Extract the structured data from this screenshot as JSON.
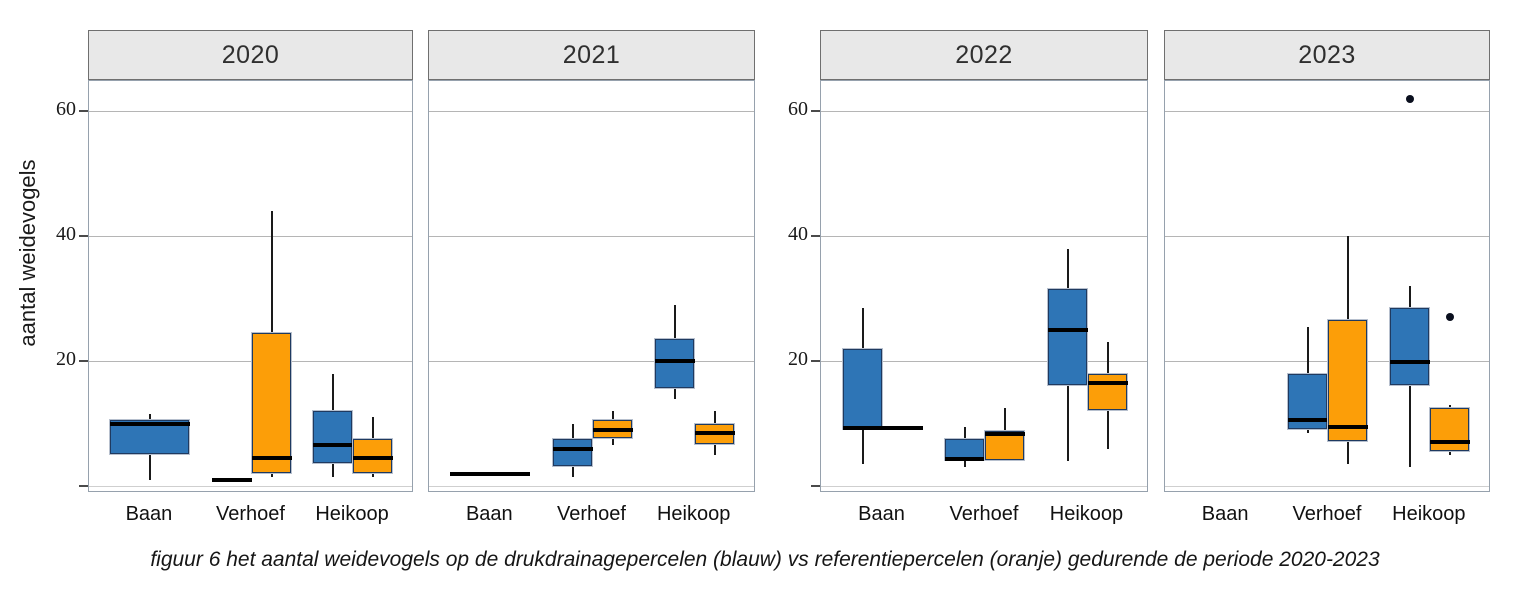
{
  "caption": "figuur 6 het aantal weidevogels op de drukdrainagepercelen (blauw) vs referentiepercelen (oranje) gedurende de periode 2020-2023",
  "colors": {
    "blue_fill": "#2E75B6",
    "orange_fill": "#FC9E08",
    "box_border": "#1F3A60",
    "box_outer_outline": "#B7C0CE",
    "median": "#000000",
    "strip_bg": "#E8E8E8",
    "panel_border": "#96A1AD",
    "grid": "#B5B5B5",
    "text": "#1A1A1A"
  },
  "chart_data": {
    "type": "boxplot",
    "title": "",
    "ylabel": "aantal weidevogels",
    "xlabel": "",
    "ylim": [
      0,
      65
    ],
    "yticks": [
      20,
      40,
      60
    ],
    "grid": "horizontal-major",
    "categories": [
      "Baan",
      "Verhoef",
      "Heikoop"
    ],
    "series": [
      {
        "key": "blue",
        "name": "drukdrainagepercelen",
        "color": "#2E75B6"
      },
      {
        "key": "orange",
        "name": "referentiepercelen",
        "color": "#FC9E08"
      }
    ],
    "panels": [
      {
        "title": "2020",
        "axis_labels": true,
        "boxes": [
          {
            "cat": "Baan",
            "series": "blue",
            "span": "full",
            "type": "box",
            "low": 1,
            "q1": 5,
            "median": 10,
            "q3": 10.5,
            "high": 11.5,
            "outliers": []
          },
          {
            "cat": "Verhoef",
            "series": "blue",
            "span": "dodge",
            "type": "flat",
            "value": 1
          },
          {
            "cat": "Verhoef",
            "series": "orange",
            "span": "dodge",
            "type": "box",
            "low": 1.5,
            "q1": 2,
            "median": 4.5,
            "q3": 24.5,
            "high": 44,
            "outliers": []
          },
          {
            "cat": "Heikoop",
            "series": "blue",
            "span": "dodge",
            "type": "box",
            "low": 1.5,
            "q1": 3.5,
            "median": 6.5,
            "q3": 12,
            "high": 18,
            "outliers": []
          },
          {
            "cat": "Heikoop",
            "series": "orange",
            "span": "dodge",
            "type": "box",
            "low": 1.5,
            "q1": 2,
            "median": 4.5,
            "q3": 7.5,
            "high": 11,
            "outliers": []
          }
        ]
      },
      {
        "title": "2021",
        "axis_labels": false,
        "boxes": [
          {
            "cat": "Baan",
            "series": "blue",
            "span": "full",
            "type": "flat",
            "value": 2
          },
          {
            "cat": "Verhoef",
            "series": "blue",
            "span": "dodge",
            "type": "box",
            "low": 1.5,
            "q1": 3,
            "median": 6,
            "q3": 7.5,
            "high": 10,
            "outliers": []
          },
          {
            "cat": "Verhoef",
            "series": "orange",
            "span": "dodge",
            "type": "box",
            "low": 6.5,
            "q1": 7.5,
            "median": 9,
            "q3": 10.5,
            "high": 12,
            "outliers": []
          },
          {
            "cat": "Heikoop",
            "series": "blue",
            "span": "dodge",
            "type": "box",
            "low": 14,
            "q1": 15.5,
            "median": 20,
            "q3": 23.5,
            "high": 29,
            "outliers": []
          },
          {
            "cat": "Heikoop",
            "series": "orange",
            "span": "dodge",
            "type": "box",
            "low": 5,
            "q1": 6.5,
            "median": 8.5,
            "q3": 10,
            "high": 12,
            "outliers": []
          }
        ]
      },
      {
        "title": "2022",
        "axis_labels": true,
        "boxes": [
          {
            "cat": "Baan",
            "series": "blue",
            "span": "dodge",
            "type": "box",
            "low": 3.5,
            "q1": 9,
            "median": 9.3,
            "q3": 22,
            "high": 28.5,
            "outliers": []
          },
          {
            "cat": "Baan",
            "series": "orange",
            "span": "dodge",
            "type": "flat",
            "value": 9.3
          },
          {
            "cat": "Verhoef",
            "series": "blue",
            "span": "dodge",
            "type": "box",
            "low": 3,
            "q1": 4,
            "median": 4.3,
            "q3": 7.5,
            "high": 9.5,
            "outliers": []
          },
          {
            "cat": "Verhoef",
            "series": "orange",
            "span": "dodge",
            "type": "box",
            "low": 4,
            "q1": 4,
            "median": 8.4,
            "q3": 8.8,
            "high": 12.5,
            "outliers": []
          },
          {
            "cat": "Heikoop",
            "series": "blue",
            "span": "dodge",
            "type": "box",
            "low": 4,
            "q1": 16,
            "median": 25,
            "q3": 31.5,
            "high": 38,
            "outliers": []
          },
          {
            "cat": "Heikoop",
            "series": "orange",
            "span": "dodge",
            "type": "box",
            "low": 6,
            "q1": 12,
            "median": 16.5,
            "q3": 18,
            "high": 23,
            "outliers": []
          }
        ]
      },
      {
        "title": "2023",
        "axis_labels": false,
        "boxes": [
          {
            "cat": "Verhoef",
            "series": "blue",
            "span": "dodge",
            "type": "box",
            "low": 8.5,
            "q1": 9,
            "median": 10.5,
            "q3": 18,
            "high": 25.5,
            "outliers": []
          },
          {
            "cat": "Verhoef",
            "series": "orange",
            "span": "dodge",
            "type": "box",
            "low": 3.5,
            "q1": 7,
            "median": 9.5,
            "q3": 26.5,
            "high": 40,
            "outliers": []
          },
          {
            "cat": "Heikoop",
            "series": "blue",
            "span": "dodge",
            "type": "box",
            "low": 3,
            "q1": 16,
            "median": 19.8,
            "q3": 28.5,
            "high": 32,
            "outliers": [
              62
            ]
          },
          {
            "cat": "Heikoop",
            "series": "orange",
            "span": "dodge",
            "type": "box",
            "low": 5,
            "q1": 5.5,
            "median": 7,
            "q3": 12.5,
            "high": 13,
            "outliers": [
              27
            ]
          }
        ]
      }
    ]
  }
}
